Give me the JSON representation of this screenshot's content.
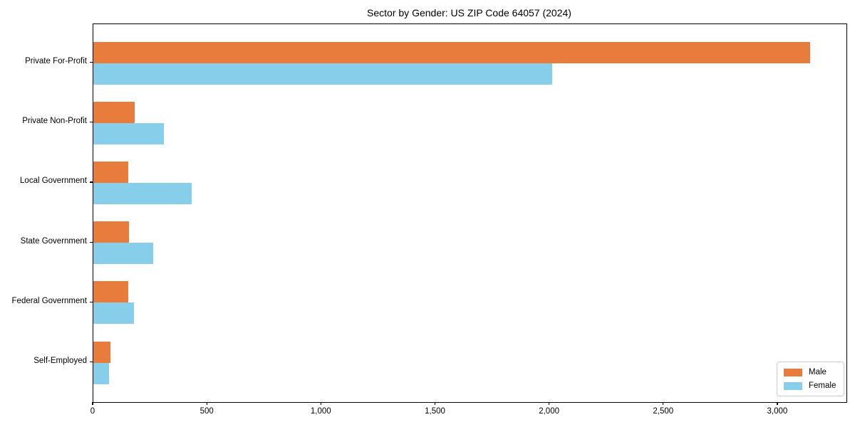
{
  "title": "Sector by Gender: US ZIP Code 64057 (2024)",
  "colors": {
    "male": "#e87c3c",
    "female": "#87ceeb",
    "axis": "#000000",
    "background": "#ffffff",
    "legend_border": "#cccccc"
  },
  "legend": {
    "position": "lower right",
    "items": [
      {
        "label": "Male",
        "color": "#e87c3c"
      },
      {
        "label": "Female",
        "color": "#87ceeb"
      }
    ]
  },
  "chart_data": {
    "type": "bar",
    "orientation": "horizontal",
    "title": "Sector by Gender: US ZIP Code 64057 (2024)",
    "xlabel": "",
    "ylabel": "",
    "categories": [
      "Private For-Profit",
      "Private Non-Profit",
      "Local Government",
      "State Government",
      "Federal Government",
      "Self-Employed"
    ],
    "series": [
      {
        "name": "Male",
        "color": "#e87c3c",
        "values": [
          3140,
          181,
          152,
          156,
          153,
          75
        ]
      },
      {
        "name": "Female",
        "color": "#87ceeb",
        "values": [
          2012,
          309,
          430,
          262,
          178,
          68
        ]
      }
    ],
    "xlim": [
      0,
      3300
    ],
    "x_ticks": [
      0,
      500,
      1000,
      1500,
      2000,
      2500,
      3000
    ],
    "x_tick_labels": [
      "0",
      "500",
      "1,000",
      "1,500",
      "2,000",
      "2,500",
      "3,000"
    ],
    "grid": false,
    "legend_position": "lower right"
  }
}
